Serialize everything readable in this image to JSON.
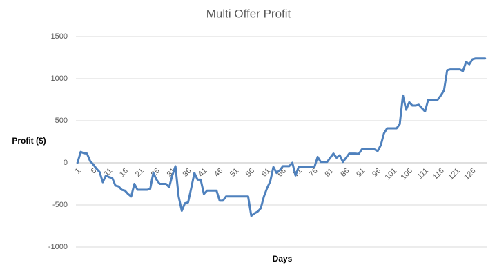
{
  "chart_data": {
    "type": "line",
    "title": "Multi Offer Profit",
    "x_label": "Days",
    "y_label": "Profit ($)",
    "categories": [
      1,
      null,
      null,
      null,
      null,
      6,
      null,
      null,
      null,
      null,
      11,
      null,
      null,
      null,
      null,
      16,
      null,
      null,
      null,
      null,
      21,
      null,
      null,
      null,
      null,
      26,
      null,
      null,
      null,
      null,
      31,
      null,
      null,
      null,
      null,
      36,
      null,
      null,
      null,
      null,
      41,
      null,
      null,
      null,
      null,
      46,
      null,
      null,
      null,
      null,
      51,
      null,
      null,
      null,
      null,
      56,
      null,
      null,
      null,
      null,
      61,
      null,
      null,
      null,
      null,
      66,
      null,
      null,
      null,
      null,
      71,
      null,
      null,
      null,
      null,
      76,
      null,
      null,
      null,
      null,
      81,
      null,
      null,
      null,
      null,
      86,
      null,
      null,
      null,
      null,
      91,
      null,
      null,
      null,
      null,
      96,
      null,
      null,
      null,
      null,
      101,
      null,
      null,
      null,
      null,
      106,
      null,
      null,
      null,
      null,
      111,
      null,
      null,
      null,
      null,
      116,
      null,
      null,
      null,
      null,
      121,
      null,
      null,
      null,
      null,
      126,
      null,
      null,
      null,
      null
    ],
    "series": [
      {
        "name": "Profit",
        "color": "#4f81bd",
        "values": [
          0,
          130,
          115,
          110,
          20,
          -20,
          -70,
          -110,
          -230,
          -150,
          -170,
          -180,
          -270,
          -280,
          -320,
          -330,
          -370,
          -400,
          -250,
          -320,
          -320,
          -320,
          -320,
          -310,
          -120,
          -200,
          -250,
          -250,
          -250,
          -290,
          -150,
          -40,
          -400,
          -570,
          -480,
          -470,
          -300,
          -120,
          -200,
          -200,
          -370,
          -330,
          -330,
          -330,
          -330,
          -450,
          -450,
          -400,
          -400,
          -400,
          -400,
          -400,
          -400,
          -400,
          -400,
          -630,
          -600,
          -580,
          -540,
          -400,
          -300,
          -220,
          -50,
          -120,
          -90,
          -40,
          -40,
          -40,
          0,
          -150,
          -50,
          -50,
          -50,
          -50,
          -50,
          -50,
          70,
          10,
          10,
          10,
          60,
          110,
          60,
          90,
          10,
          60,
          110,
          110,
          110,
          105,
          160,
          160,
          160,
          160,
          160,
          140,
          210,
          350,
          410,
          410,
          410,
          410,
          460,
          800,
          630,
          720,
          680,
          680,
          690,
          650,
          610,
          750,
          750,
          750,
          750,
          800,
          860,
          1100,
          1110,
          1110,
          1110,
          1110,
          1090,
          1200,
          1170,
          1230,
          1240,
          1240,
          1240,
          1240
        ]
      }
    ],
    "ylim": [
      -1000,
      1500
    ],
    "yticks": [
      -1000,
      -500,
      0,
      500,
      1000,
      1500
    ],
    "grid": true
  }
}
